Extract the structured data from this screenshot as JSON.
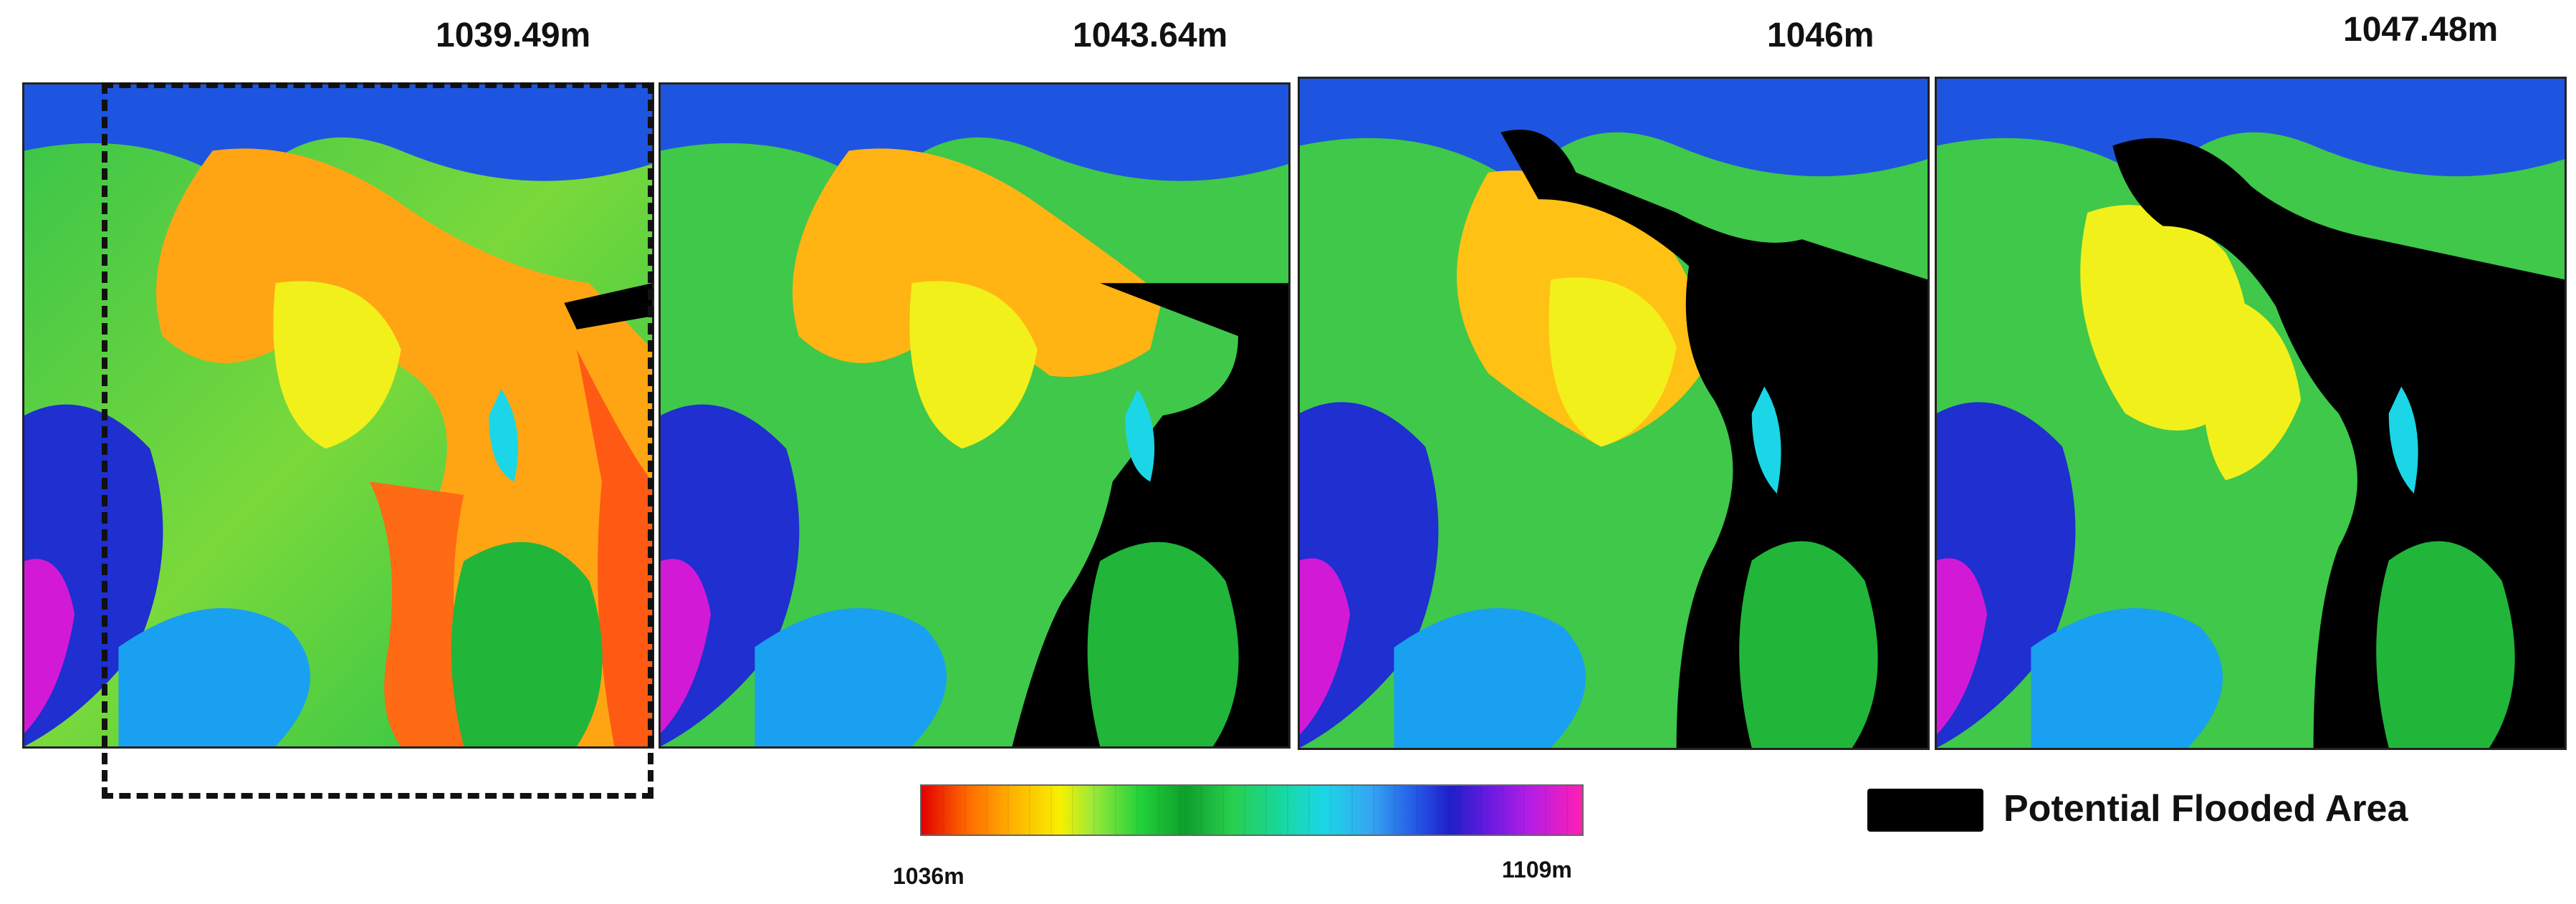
{
  "panels": [
    {
      "title": "1039.49m"
    },
    {
      "title": "1043.64m"
    },
    {
      "title": "1046m"
    },
    {
      "title": "1047.48m"
    }
  ],
  "colorbar": {
    "min_label": "1036m",
    "max_label": "1109m"
  },
  "legend": {
    "label": "Potential Flooded Area",
    "color": "#000000"
  },
  "colors": {
    "low_elevation": "#e30000",
    "mid_elevation": "#22d23a",
    "high_elevation": "#ff1fb4",
    "flood": "#000000"
  }
}
